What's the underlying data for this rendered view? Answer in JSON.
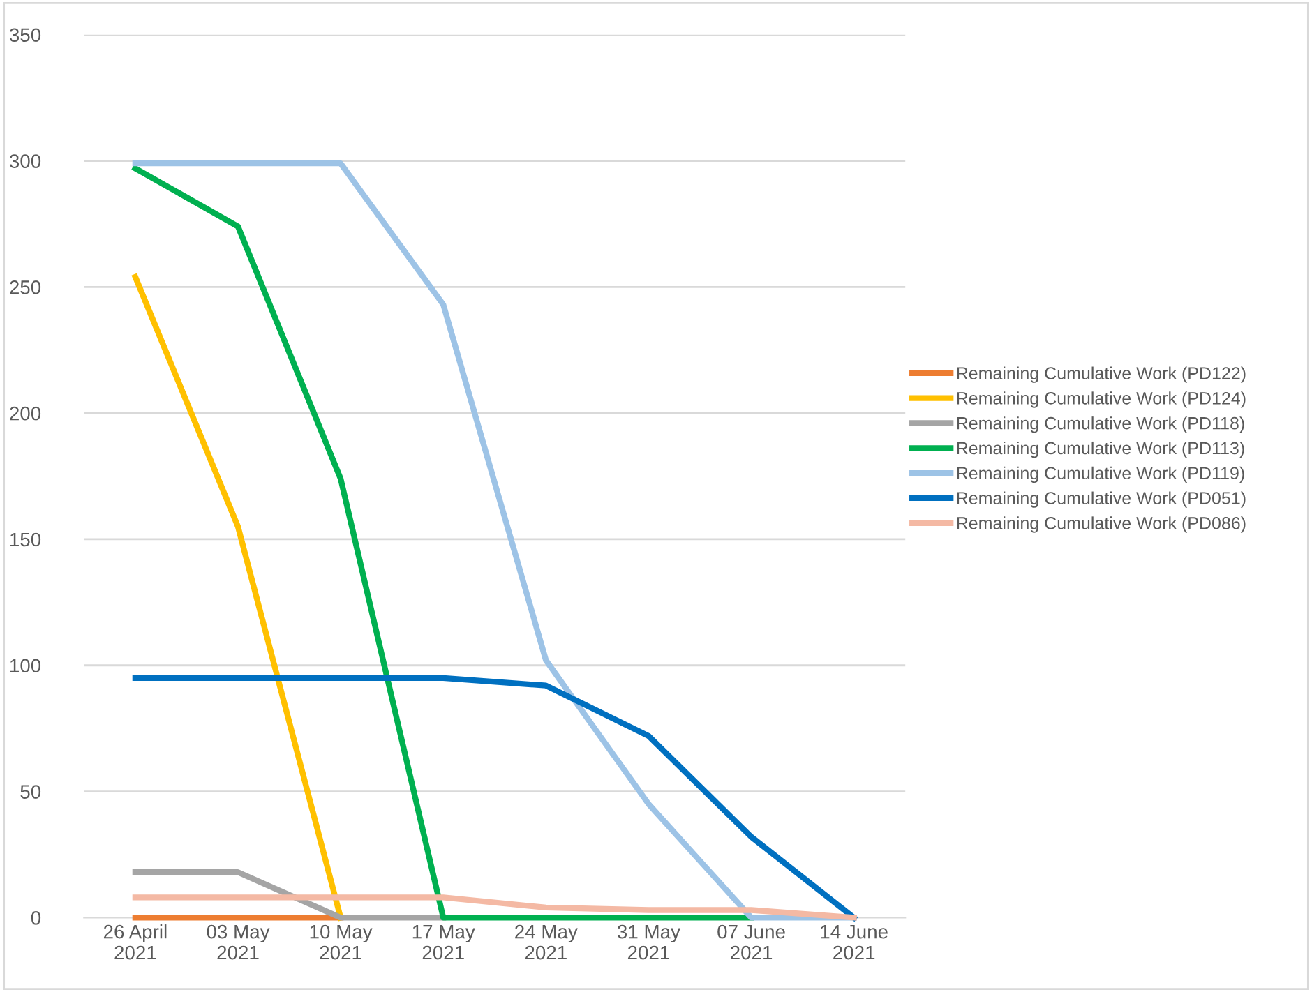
{
  "chart_data": {
    "type": "line",
    "categories": [
      "26 April\n2021",
      "03 May\n2021",
      "10 May\n2021",
      "17 May\n2021",
      "24 May\n2021",
      "31 May\n2021",
      "07 June\n2021",
      "14 June\n2021"
    ],
    "series": [
      {
        "name": "Remaining Cumulative Work (PD122)",
        "color": "#ed7d31",
        "values": [
          0,
          0,
          0,
          null,
          null,
          null,
          null,
          null
        ]
      },
      {
        "name": "Remaining Cumulative Work (PD124)",
        "color": "#ffc000",
        "values": [
          254,
          155,
          0,
          null,
          null,
          null,
          null,
          null
        ]
      },
      {
        "name": "Remaining Cumulative Work (PD118)",
        "color": "#a5a5a5",
        "values": [
          18,
          18,
          0,
          0,
          null,
          null,
          null,
          null
        ]
      },
      {
        "name": "Remaining Cumulative Work (PD113)",
        "color": "#00b050",
        "values": [
          297,
          274,
          174,
          0,
          0,
          0,
          0,
          null
        ]
      },
      {
        "name": "Remaining Cumulative Work (PD119)",
        "color": "#9dc3e6",
        "values": [
          299,
          299,
          299,
          243,
          102,
          45,
          0,
          0
        ]
      },
      {
        "name": "Remaining Cumulative Work (PD051)",
        "color": "#0070c0",
        "values": [
          95,
          95,
          95,
          95,
          92,
          72,
          32,
          0
        ]
      },
      {
        "name": "Remaining Cumulative Work (PD086)",
        "color": "#f4b9a4",
        "values": [
          8,
          8,
          8,
          8,
          4,
          3,
          3,
          0
        ]
      }
    ],
    "ylim": [
      0,
      350
    ],
    "yticks": [
      0,
      50,
      100,
      150,
      200,
      250,
      300,
      350
    ],
    "grid": "y",
    "legend": "right",
    "marker": "none",
    "line_style": "solid"
  }
}
